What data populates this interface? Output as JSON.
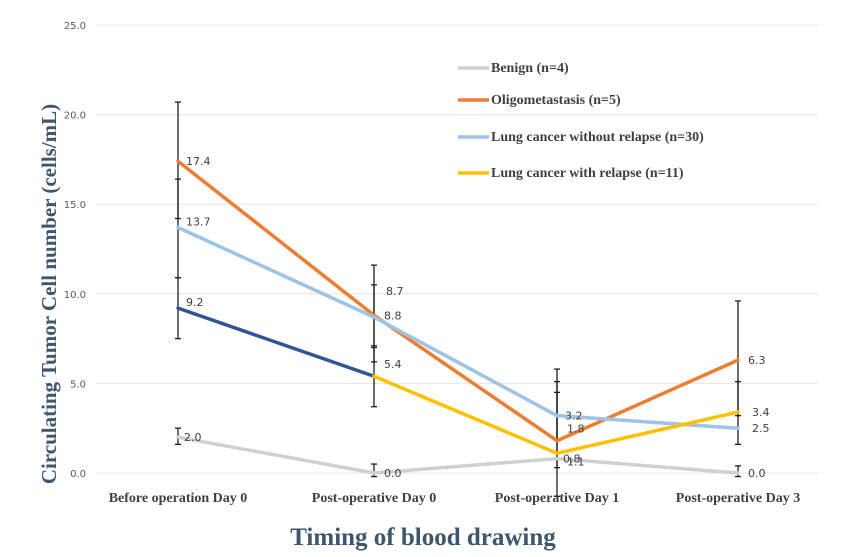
{
  "chart_data": {
    "type": "line",
    "xlabel": "Timing of blood drawing",
    "ylabel": "Circulating Tumor Cell number (cells/mL)",
    "ylim": [
      0,
      25
    ],
    "yticks": [
      "0.0",
      "5.0",
      "10.0",
      "15.0",
      "20.0",
      "25.0"
    ],
    "categories": [
      "Before operation Day 0",
      "Post-operative Day 0",
      "Post-operative Day 1",
      "Post-operative Day 3"
    ],
    "grid": true,
    "legend_position": "top-right",
    "series": [
      {
        "name": "Benign (n=4)",
        "color": "#d0d0d0",
        "values": [
          2.0,
          0.0,
          0.8,
          0.0
        ],
        "labels": [
          "2.0",
          "0.0",
          "0.8",
          "0.0"
        ],
        "error": [
          [
            1.6,
            2.5
          ],
          [
            -0.2,
            0.5
          ],
          null,
          [
            -0.2,
            0.4
          ]
        ]
      },
      {
        "name": "Oligometastasis (n=5)",
        "color": "#ed7d31",
        "values": [
          17.4,
          8.8,
          1.8,
          6.3
        ],
        "labels": [
          "17.4",
          "8.8",
          "1.8",
          "6.3"
        ],
        "error": [
          [
            14.2,
            20.7
          ],
          [
            6.2,
            11.6
          ],
          [
            -1.3,
            5.1
          ],
          [
            3.2,
            9.6
          ]
        ]
      },
      {
        "name": "Lung cancer without relapse (n=30)",
        "color": "#9dc3e6",
        "values": [
          13.7,
          8.7,
          3.2,
          2.5
        ],
        "labels": [
          "13.7",
          "8.7",
          "3.2",
          "2.5"
        ],
        "error": [
          [
            10.9,
            16.4
          ],
          [
            7.0,
            10.5
          ],
          [
            1.9,
            4.5
          ],
          null
        ]
      },
      {
        "name": "Lung cancer with relapse (n=11)",
        "color": "#ffc000",
        "segment_colors": [
          "#2f5597",
          "#ffc000",
          "#ffc000"
        ],
        "values": [
          9.2,
          5.4,
          1.1,
          3.4
        ],
        "labels": [
          "9.2",
          "5.4",
          "1.1",
          "3.4"
        ],
        "error": [
          [
            7.5,
            10.9
          ],
          [
            3.7,
            7.1
          ],
          [
            0.3,
            5.8
          ],
          [
            1.6,
            5.1
          ]
        ]
      }
    ]
  }
}
